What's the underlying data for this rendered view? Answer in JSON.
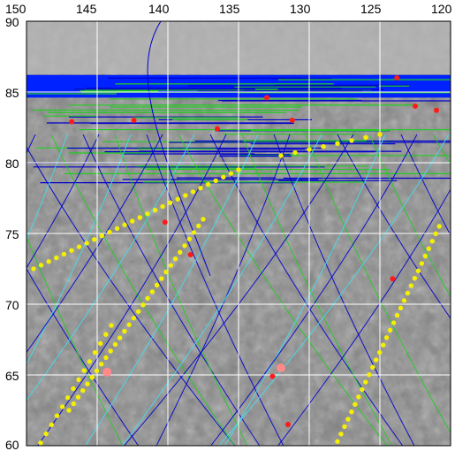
{
  "map": {
    "x_axis": {
      "labels": [
        "150",
        "145",
        "140",
        "135",
        "130",
        "125",
        "120"
      ],
      "values": [
        150,
        145,
        140,
        135,
        130,
        125,
        120
      ],
      "range": [
        150,
        120
      ]
    },
    "y_axis": {
      "labels": [
        "90",
        "85",
        "80",
        "75",
        "70",
        "65",
        "60"
      ],
      "values": [
        90,
        85,
        80,
        75,
        70,
        65,
        60
      ],
      "range": [
        60,
        90
      ]
    },
    "grid": true,
    "colors": {
      "background": "#8c8c8c",
      "grid": "#ffffff",
      "blue_tracks": "#0000cc",
      "green_tracks": "#22cc22",
      "cyan_tracks": "#44ddee",
      "yellow_points": "#f5f000",
      "red_points": "#ff1a1a",
      "blue_band": "#0022ff"
    },
    "red_points": [
      [
        146.8,
        82.9
      ],
      [
        142.4,
        83.0
      ],
      [
        136.5,
        82.4
      ],
      [
        133.0,
        84.6
      ],
      [
        131.2,
        83.0
      ],
      [
        123.8,
        86.0
      ],
      [
        122.5,
        84.0
      ],
      [
        121.0,
        83.7
      ],
      [
        140.2,
        75.8
      ],
      [
        138.4,
        73.5
      ],
      [
        124.1,
        71.8
      ],
      [
        132.6,
        64.9
      ],
      [
        131.5,
        61.5
      ]
    ],
    "pink_points": [
      [
        144.3,
        65.2
      ],
      [
        132.0,
        65.5
      ]
    ]
  }
}
